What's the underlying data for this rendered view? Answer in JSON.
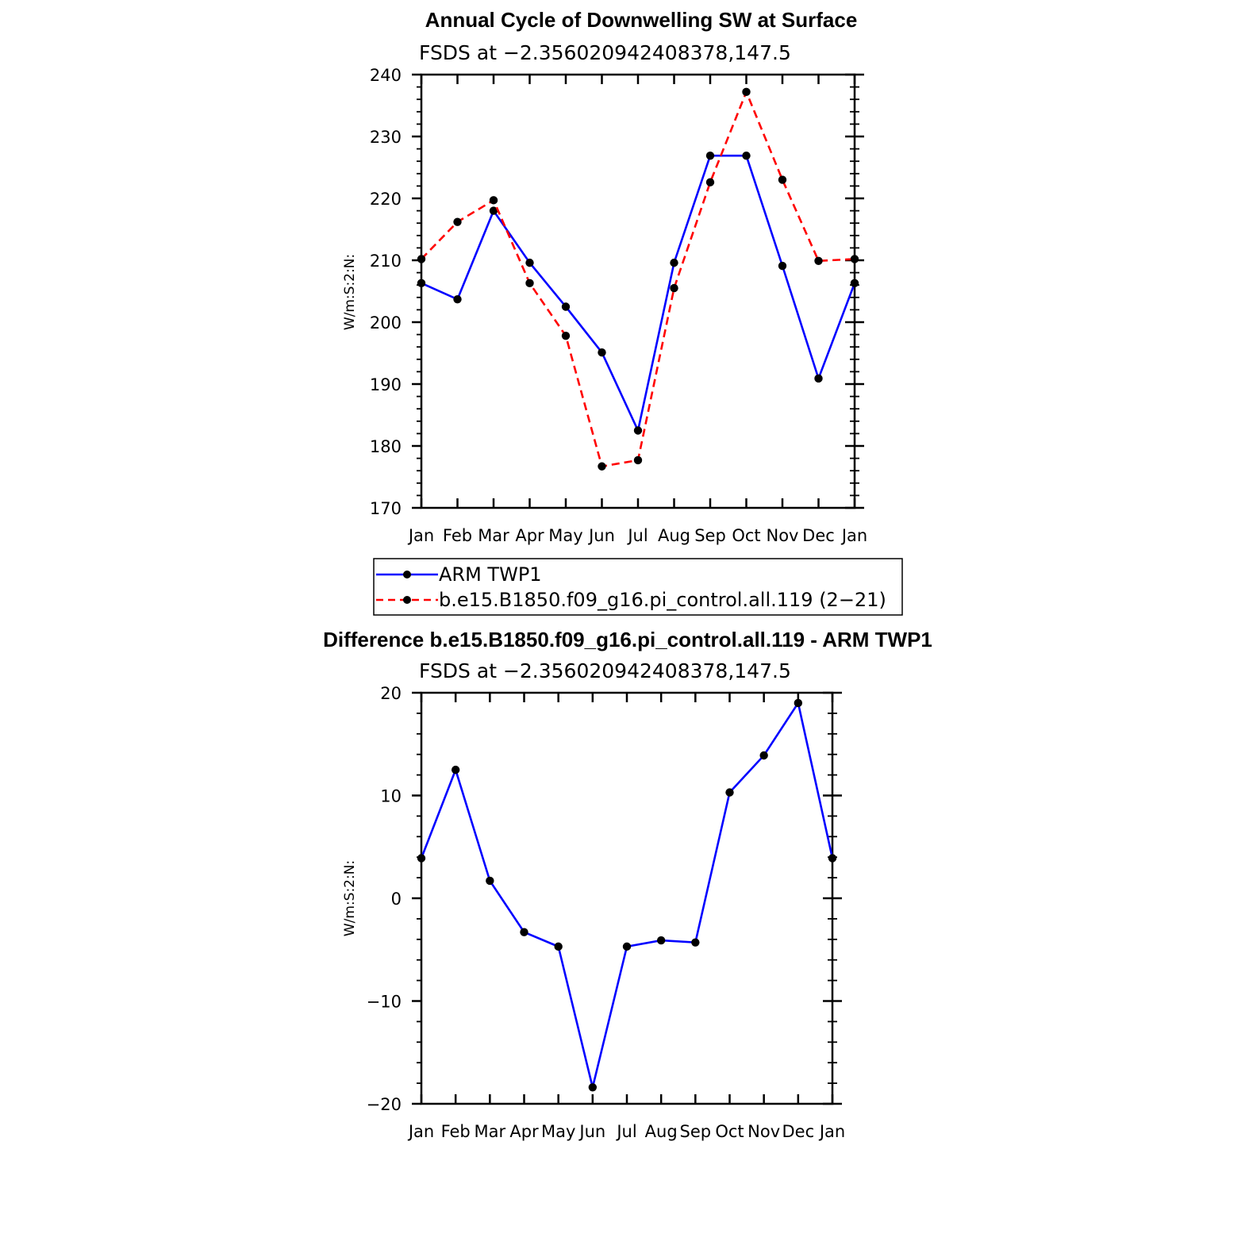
{
  "chart_data": [
    {
      "type": "line",
      "title": "Annual Cycle of Downwelling SW at Surface",
      "subtitle": "FSDS at −2.356020942408378,147.5",
      "ylabel": "W/m:S:2:N:",
      "categories": [
        "Jan",
        "Feb",
        "Mar",
        "Apr",
        "May",
        "Jun",
        "Jul",
        "Aug",
        "Sep",
        "Oct",
        "Nov",
        "Dec",
        "Jan"
      ],
      "ylim": [
        170,
        240
      ],
      "yticks": [
        170,
        180,
        190,
        200,
        210,
        220,
        230,
        240
      ],
      "series": [
        {
          "name": "ARM TWP1",
          "color": "#0000ff",
          "dash": "solid",
          "values": [
            206.3,
            203.7,
            218.0,
            209.6,
            202.5,
            195.1,
            182.5,
            209.6,
            226.9,
            226.9,
            209.1,
            190.9,
            206.3
          ]
        },
        {
          "name": "b.e15.B1850.f09_g16.pi_control.all.119 (2−21)",
          "color": "#ff0000",
          "dash": "dashed",
          "values": [
            210.2,
            216.2,
            219.7,
            206.3,
            197.8,
            176.7,
            177.7,
            205.5,
            222.6,
            237.2,
            223.0,
            209.9,
            210.2
          ]
        }
      ],
      "legend": "below"
    },
    {
      "type": "line",
      "title": "Difference b.e15.B1850.f09_g16.pi_control.all.119 - ARM TWP1",
      "subtitle": "FSDS at −2.356020942408378,147.5",
      "ylabel": "W/m:S:2:N:",
      "categories": [
        "Jan",
        "Feb",
        "Mar",
        "Apr",
        "May",
        "Jun",
        "Jul",
        "Aug",
        "Sep",
        "Oct",
        "Nov",
        "Dec",
        "Jan"
      ],
      "ylim": [
        -20,
        20
      ],
      "yticks": [
        -20,
        -10,
        0,
        10,
        20
      ],
      "ytick_labels": [
        "−20",
        "−10",
        "0",
        "10",
        "20"
      ],
      "series": [
        {
          "color": "#0000ff",
          "dash": "solid",
          "values": [
            3.9,
            12.5,
            1.7,
            -3.3,
            -4.7,
            -18.4,
            -4.7,
            -4.1,
            -4.3,
            10.3,
            13.9,
            19.0,
            3.9
          ]
        }
      ]
    }
  ]
}
